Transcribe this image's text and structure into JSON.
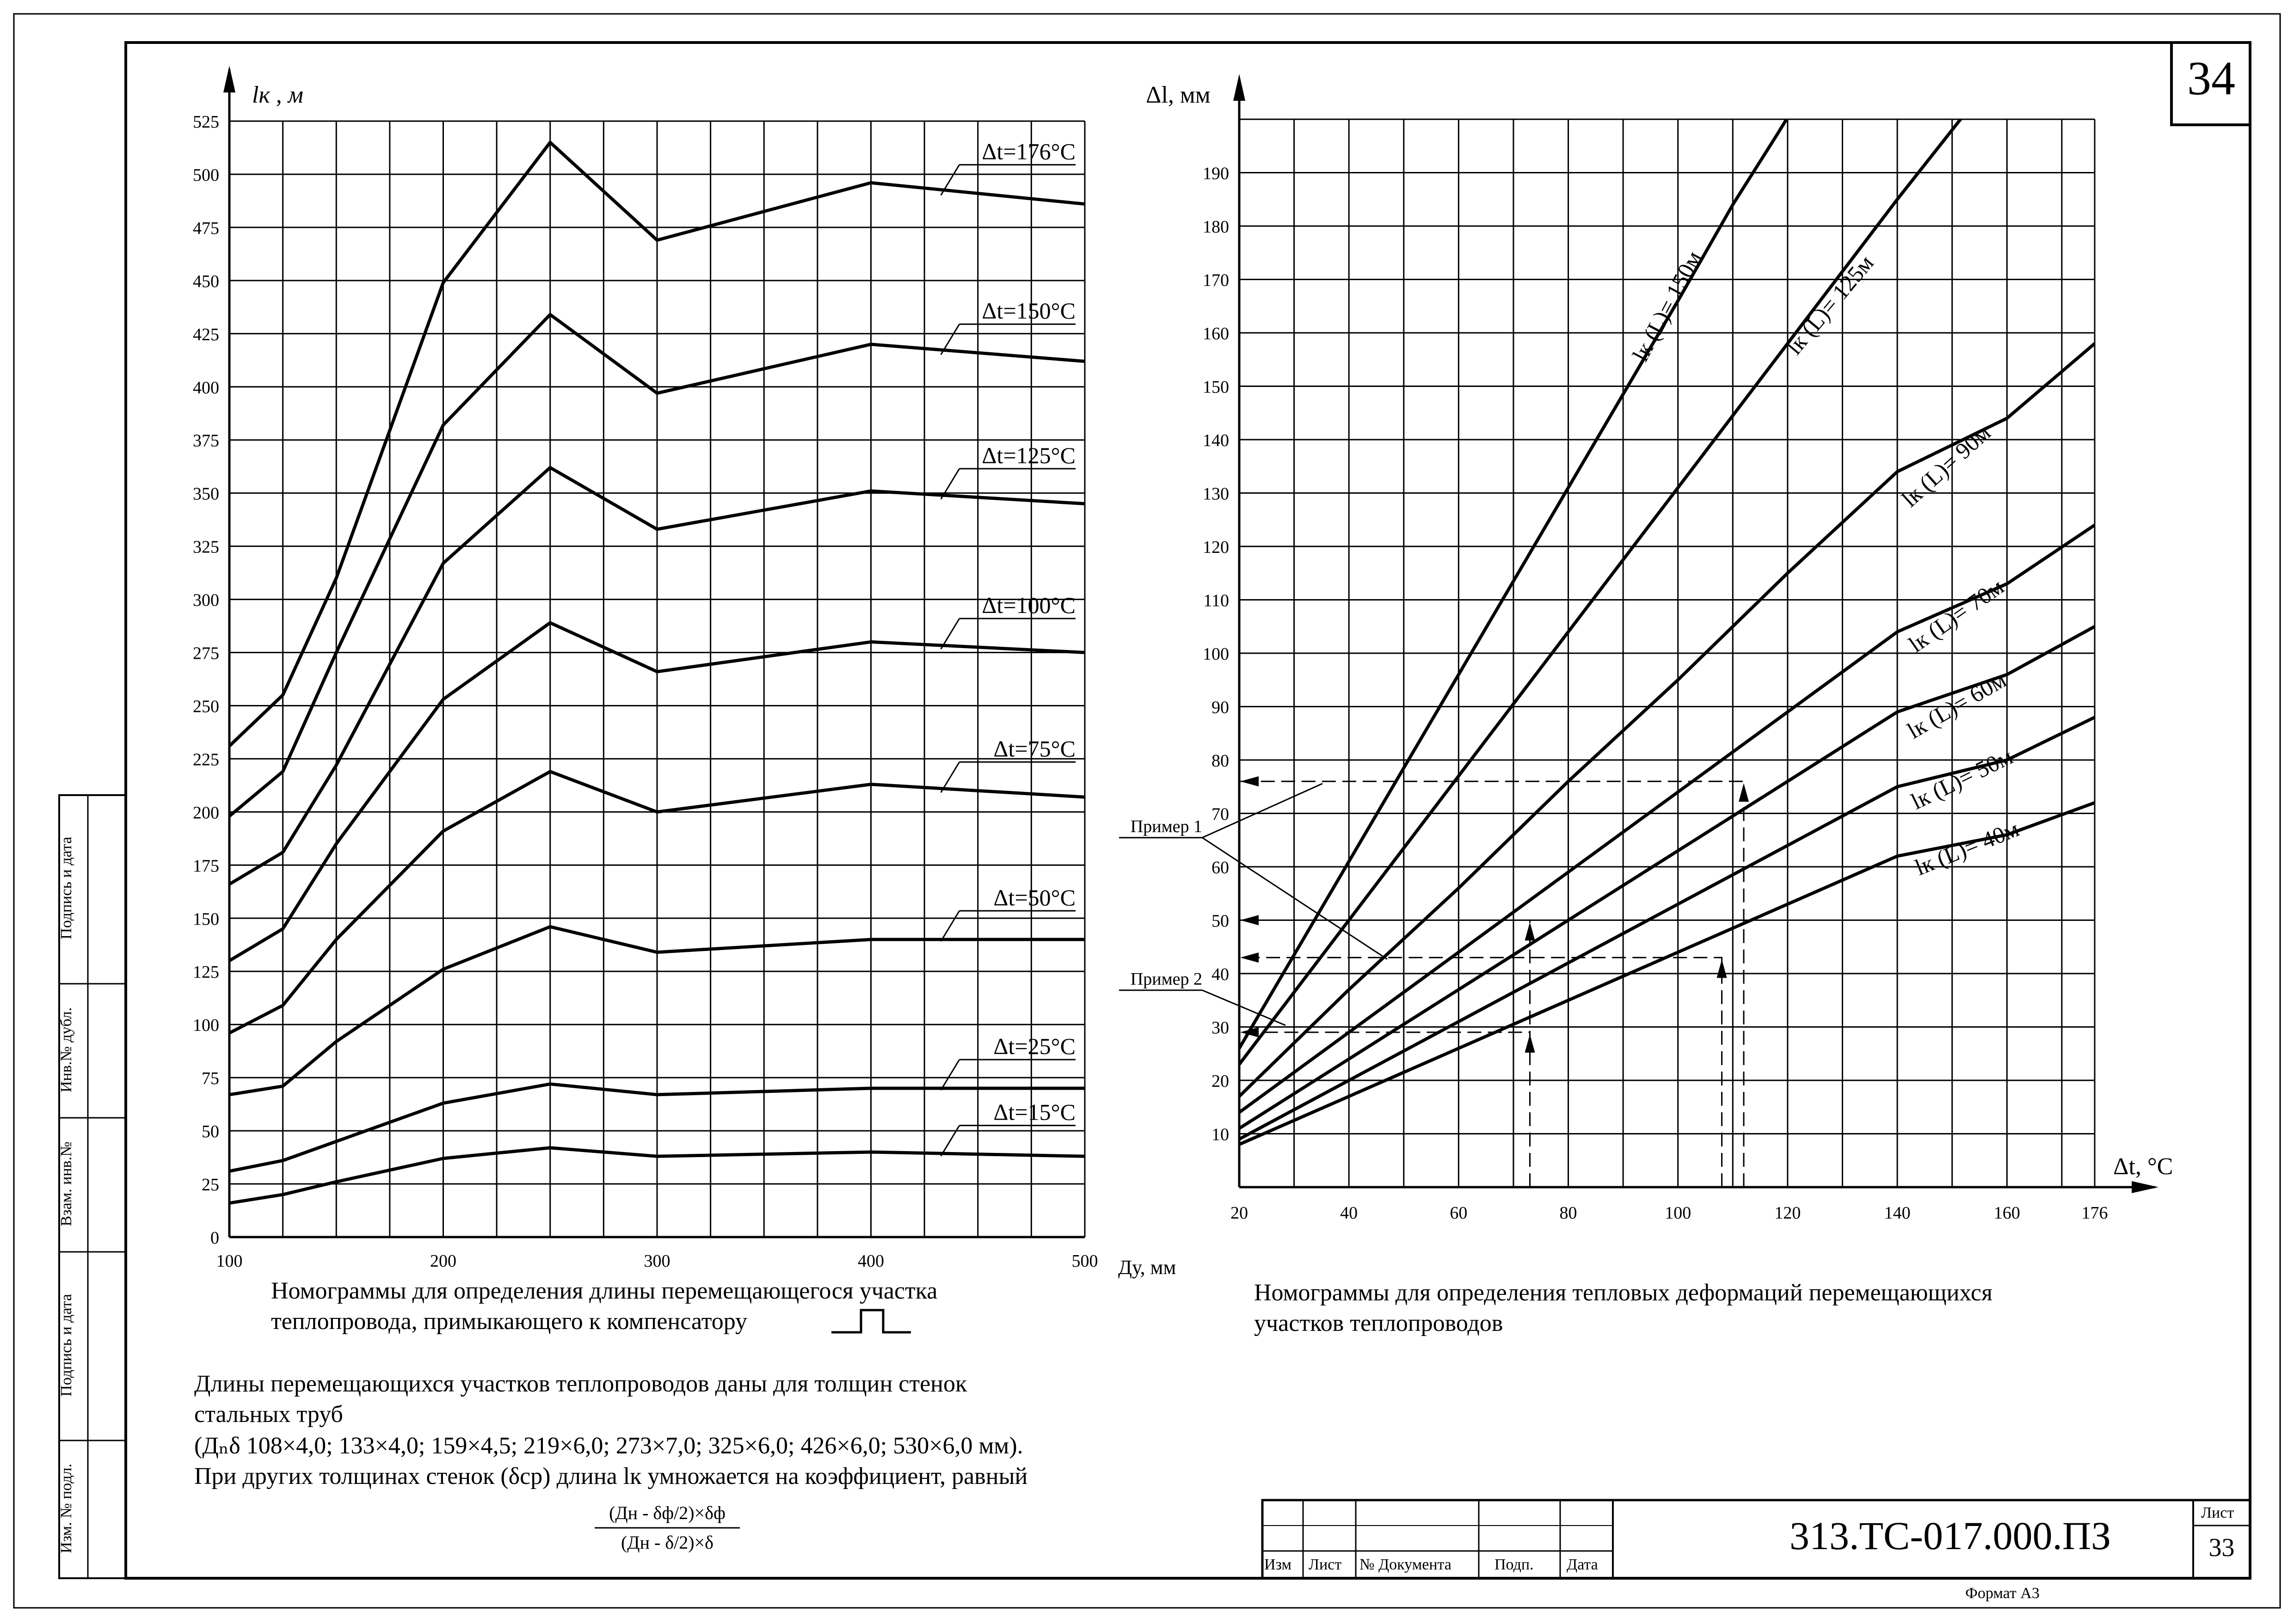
{
  "sheet": {
    "page_number": "34",
    "doc_code": "313.ТС-017.000.ПЗ",
    "list_label": "Лист",
    "list_number": "33",
    "format_label": "Формат А3",
    "stamp_headers": [
      "Изм",
      "Лист",
      "№ Документа",
      "Подп.",
      "Дата"
    ],
    "side_labels": [
      "Подпись и дата",
      "Инв.№ дубл.",
      "Взам. инв.№",
      "Подпись и дата",
      "Изм. № подл."
    ]
  },
  "captions": {
    "left_line1": "Номограммы для определения длины перемещающегося участка",
    "left_line2": "теплопровода, примыкающего к компенсатору",
    "right_line1": "Номограммы для определения тепловых деформаций перемещающихся",
    "right_line2": "участков теплопроводов"
  },
  "notes": {
    "line1": "Длины перемещающихся участков теплопроводов даны для толщин стенок",
    "line2": "стальных труб",
    "line3": "(Дₙδ 108×4,0; 133×4,0; 159×4,5; 219×6,0; 273×7,0; 325×6,0; 426×6,0; 530×6,0 мм).",
    "line4": "При других толщинах стенок (δср)  длина lк умножается на коэффициент, равный",
    "frac_num": "(Дн - δф/2)×δф",
    "frac_den": "(Дн - δ/2)×δ"
  },
  "chart_data": [
    {
      "type": "line",
      "ylabel": "lк , м",
      "xlabel": "Ду, мм",
      "xlim": [
        100,
        500
      ],
      "ylim": [
        0,
        525
      ],
      "x_ticks": [
        100,
        200,
        300,
        400,
        500
      ],
      "y_ticks": [
        0,
        25,
        50,
        75,
        100,
        125,
        150,
        175,
        200,
        225,
        250,
        275,
        300,
        325,
        350,
        375,
        400,
        425,
        450,
        475,
        500,
        525
      ],
      "grid": true,
      "x": [
        100,
        125,
        150,
        200,
        250,
        300,
        400,
        500
      ],
      "series": [
        {
          "name": "Δt=176°C",
          "values": [
            231,
            255,
            310,
            449,
            515,
            469,
            496,
            486
          ]
        },
        {
          "name": "Δt=150°C",
          "values": [
            198,
            219,
            275,
            382,
            434,
            397,
            420,
            412
          ]
        },
        {
          "name": "Δt=125°C",
          "values": [
            166,
            181,
            222,
            317,
            362,
            333,
            351,
            345
          ]
        },
        {
          "name": "Δt=100°C",
          "values": [
            130,
            145,
            185,
            253,
            289,
            266,
            280,
            275
          ]
        },
        {
          "name": "Δt=75°C",
          "values": [
            96,
            109,
            140,
            191,
            219,
            200,
            213,
            207
          ]
        },
        {
          "name": "Δt=50°C",
          "values": [
            67,
            71,
            92,
            126,
            146,
            134,
            140,
            140
          ]
        },
        {
          "name": "Δt=25°C",
          "values": [
            31,
            36,
            45,
            63,
            72,
            67,
            70,
            70
          ]
        },
        {
          "name": "Δt=15°C",
          "values": [
            16,
            20,
            26,
            37,
            42,
            38,
            40,
            38
          ]
        }
      ]
    },
    {
      "type": "line",
      "ylabel": "Δl, мм",
      "xlabel": "Δt, °C",
      "xlim": [
        20,
        176
      ],
      "ylim": [
        0,
        200
      ],
      "x_ticks": [
        20,
        40,
        60,
        80,
        100,
        120,
        140,
        160,
        176
      ],
      "y_ticks": [
        10,
        20,
        30,
        40,
        50,
        60,
        70,
        80,
        90,
        100,
        110,
        120,
        130,
        140,
        150,
        160,
        170,
        180,
        190
      ],
      "grid": true,
      "series": [
        {
          "name": "lк (L)= 150м",
          "x": [
            20,
            40,
            60,
            80,
            100,
            110,
            118,
            124
          ],
          "values": [
            26,
            61,
            96,
            131,
            166,
            184,
            197,
            207
          ]
        },
        {
          "name": "lк (L)= 125м",
          "x": [
            20,
            40,
            60,
            80,
            100,
            120,
            140,
            150,
            160
          ],
          "values": [
            23,
            50,
            77,
            104,
            131,
            158,
            185,
            198,
            211
          ]
        },
        {
          "name": "lк (L)= 90м",
          "x": [
            20,
            40,
            60,
            80,
            100,
            120,
            140,
            160,
            176
          ],
          "values": [
            17,
            37,
            56,
            76,
            95,
            115,
            134,
            144,
            158
          ]
        },
        {
          "name": "lк (L)= 70м",
          "x": [
            20,
            40,
            60,
            80,
            100,
            120,
            140,
            160,
            176
          ],
          "values": [
            14,
            29,
            44,
            59,
            74,
            89,
            104,
            113,
            124
          ]
        },
        {
          "name": "lк (L)= 60м",
          "x": [
            20,
            40,
            60,
            80,
            100,
            120,
            140,
            160,
            176
          ],
          "values": [
            11,
            24,
            37,
            50,
            63,
            76,
            89,
            96,
            105
          ]
        },
        {
          "name": "lк (L)= 50м",
          "x": [
            20,
            40,
            60,
            80,
            100,
            120,
            140,
            160,
            176
          ],
          "values": [
            9,
            20,
            31,
            42,
            53,
            64,
            75,
            80,
            88
          ]
        },
        {
          "name": "lк (L)= 40м",
          "x": [
            20,
            40,
            60,
            80,
            100,
            120,
            140,
            160,
            176
          ],
          "values": [
            8,
            17,
            26,
            35,
            44,
            53,
            62,
            66,
            72
          ]
        }
      ],
      "annotations": [
        {
          "text": "Пример 1",
          "path": [
            [
              112,
              0
            ],
            [
              112,
              76
            ],
            [
              20,
              76
            ]
          ]
        },
        {
          "text": "Пример 1",
          "path": [
            [
              73,
              0
            ],
            [
              73,
              50
            ],
            [
              20,
              50
            ]
          ]
        },
        {
          "text": "Пример 2",
          "path": [
            [
              108,
              0
            ],
            [
              108,
              43
            ],
            [
              20,
              43
            ]
          ]
        },
        {
          "text": "Пример 2",
          "path": [
            [
              73,
              0
            ],
            [
              73,
              29
            ],
            [
              20,
              29
            ]
          ]
        }
      ]
    }
  ]
}
